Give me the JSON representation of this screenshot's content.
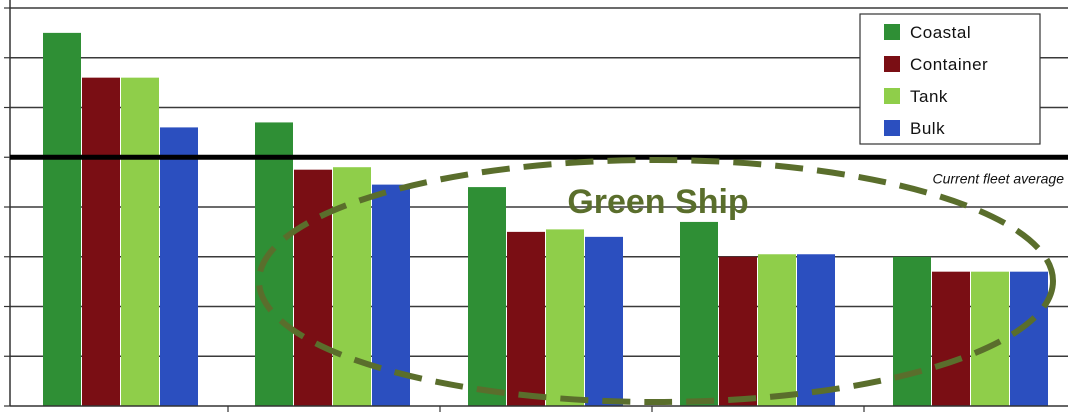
{
  "chart_data": {
    "type": "bar",
    "title": "",
    "xlabel": "",
    "ylabel": "",
    "ylim": [
      0,
      8
    ],
    "grid": "horizontal",
    "legend_placement": "top-right",
    "categories": [
      "",
      "",
      "",
      "",
      ""
    ],
    "series": [
      {
        "name": "Coastal",
        "color": "#2f8f35",
        "values": [
          7.5,
          5.7,
          4.4,
          3.7,
          3.0
        ]
      },
      {
        "name": "Container",
        "color": "#7a0e14",
        "values": [
          6.6,
          4.75,
          3.5,
          3.0,
          2.7
        ]
      },
      {
        "name": "Tank",
        "color": "#8fce4a",
        "values": [
          6.6,
          4.8,
          3.55,
          3.05,
          2.7
        ]
      },
      {
        "name": "Bulk",
        "color": "#2b4fbf",
        "values": [
          5.6,
          4.45,
          3.4,
          3.05,
          2.7
        ]
      }
    ],
    "reference_line": {
      "label": "Current fleet average",
      "value": 5.0,
      "color": "#000000"
    },
    "annotation": {
      "label": "Green Ship",
      "color": "#5a6e2c"
    }
  }
}
